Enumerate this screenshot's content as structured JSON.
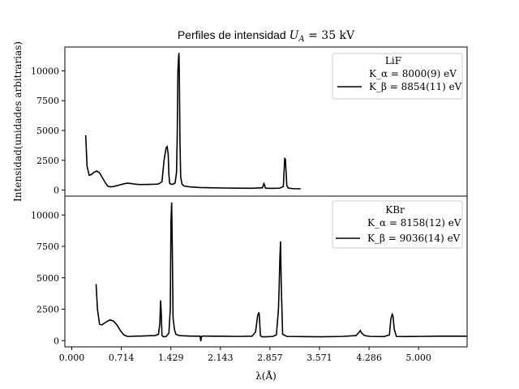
{
  "figure": {
    "title": "Perfiles de intensidad U_A = 35 kV",
    "ylabel": "Intensidad(unidades arbitrarias)",
    "xlabel": "λ(Å)"
  },
  "chart_data": [
    {
      "type": "line",
      "panel": "top",
      "legend_title": "LiF",
      "legend_placement": "top-right",
      "legend_lines": [
        "K_α = 8000(9) eV",
        "K_β = 8854(11) eV"
      ],
      "xlim": [
        -0.1,
        5.7
      ],
      "ylim": [
        -500,
        12000
      ],
      "yticks": [
        0,
        2500,
        5000,
        7500,
        10000
      ],
      "grid": false,
      "series": [
        {
          "color": "#000000",
          "x": [
            0.2,
            0.22,
            0.25,
            0.28,
            0.32,
            0.36,
            0.4,
            0.44,
            0.48,
            0.52,
            0.56,
            0.6,
            0.65,
            0.7,
            0.75,
            0.8,
            0.85,
            0.9,
            0.95,
            1.0,
            1.1,
            1.2,
            1.25,
            1.3,
            1.33,
            1.36,
            1.375,
            1.39,
            1.4,
            1.41,
            1.43,
            1.46,
            1.49,
            1.51,
            1.52,
            1.53,
            1.54,
            1.545,
            1.55,
            1.56,
            1.57,
            1.59,
            1.62,
            1.7,
            1.85,
            2.0,
            2.2,
            2.4,
            2.6,
            2.75,
            2.77,
            2.78,
            2.79,
            2.8,
            2.82,
            2.9,
            3.0,
            3.05,
            3.06,
            3.07,
            3.08,
            3.09,
            3.1,
            3.12,
            3.2,
            3.3
          ],
          "y": [
            4600,
            2000,
            1250,
            1300,
            1500,
            1600,
            1450,
            1050,
            650,
            320,
            280,
            300,
            380,
            450,
            530,
            580,
            560,
            520,
            480,
            470,
            480,
            500,
            520,
            700,
            2500,
            3550,
            3650,
            3000,
            1300,
            600,
            500,
            500,
            600,
            1500,
            4500,
            10000,
            11200,
            11500,
            10000,
            4000,
            1100,
            500,
            350,
            280,
            220,
            200,
            180,
            170,
            160,
            200,
            550,
            420,
            200,
            160,
            160,
            150,
            170,
            300,
            1500,
            2650,
            2600,
            1500,
            400,
            180,
            120,
            120
          ],
          "style": "solid"
        }
      ]
    },
    {
      "type": "line",
      "panel": "bottom",
      "legend_title": "KBr",
      "legend_placement": "top-right",
      "legend_lines": [
        "K_α = 8158(12) eV",
        "K_β = 9036(14) eV"
      ],
      "xlim": [
        -0.1,
        5.7
      ],
      "ylim": [
        -500,
        11500
      ],
      "yticks": [
        0,
        2500,
        5000,
        7500,
        10000
      ],
      "xticks": [
        "0.000",
        "0.714",
        "1.429",
        "2.143",
        "2.857",
        "3.571",
        "4.286",
        "5.000"
      ],
      "xtick_values": [
        0.0,
        0.714,
        1.429,
        2.143,
        2.857,
        3.571,
        4.286,
        5.0
      ],
      "grid": false,
      "series": [
        {
          "color": "#000000",
          "x": [
            0.35,
            0.37,
            0.4,
            0.43,
            0.46,
            0.5,
            0.55,
            0.6,
            0.65,
            0.7,
            0.75,
            0.8,
            0.85,
            0.9,
            0.95,
            1.0,
            1.1,
            1.2,
            1.25,
            1.27,
            1.28,
            1.29,
            1.3,
            1.32,
            1.36,
            1.4,
            1.42,
            1.43,
            1.44,
            1.45,
            1.46,
            1.48,
            1.5,
            1.55,
            1.6,
            1.7,
            1.8,
            1.85,
            1.86,
            1.87,
            1.88,
            1.9,
            2.0,
            2.2,
            2.4,
            2.6,
            2.65,
            2.68,
            2.7,
            2.71,
            2.72,
            2.74,
            2.8,
            2.9,
            2.95,
            2.98,
            2.99,
            3.0,
            3.01,
            3.02,
            3.04,
            3.1,
            3.3,
            3.6,
            3.9,
            4.1,
            4.14,
            4.16,
            4.18,
            4.22,
            4.3,
            4.5,
            4.58,
            4.6,
            4.62,
            4.63,
            4.65,
            4.68,
            4.8,
            5.0,
            5.3,
            5.7
          ],
          "y": [
            4500,
            2500,
            1300,
            1250,
            1350,
            1500,
            1650,
            1550,
            1250,
            800,
            450,
            330,
            330,
            350,
            360,
            360,
            380,
            400,
            500,
            1400,
            3200,
            2200,
            400,
            300,
            320,
            600,
            2500,
            9500,
            11000,
            7000,
            1800,
            900,
            500,
            400,
            380,
            360,
            350,
            350,
            -50,
            300,
            350,
            360,
            350,
            340,
            330,
            350,
            700,
            2000,
            2250,
            1400,
            400,
            300,
            300,
            330,
            450,
            2500,
            4300,
            6500,
            7900,
            4500,
            500,
            330,
            320,
            300,
            330,
            400,
            650,
            800,
            600,
            400,
            330,
            320,
            450,
            1700,
            2100,
            2000,
            900,
            330,
            320,
            330,
            350,
            350
          ],
          "style": "solid"
        }
      ]
    }
  ]
}
